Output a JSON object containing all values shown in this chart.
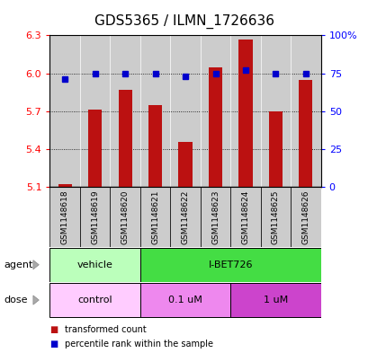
{
  "title": "GDS5365 / ILMN_1726636",
  "samples": [
    "GSM1148618",
    "GSM1148619",
    "GSM1148620",
    "GSM1148621",
    "GSM1148622",
    "GSM1148623",
    "GSM1148624",
    "GSM1148625",
    "GSM1148626"
  ],
  "red_values": [
    5.12,
    5.71,
    5.87,
    5.75,
    5.46,
    6.05,
    6.27,
    5.7,
    5.95
  ],
  "blue_values": [
    71,
    75,
    75,
    75,
    73,
    75,
    77,
    75,
    75
  ],
  "ylim_left": [
    5.1,
    6.3
  ],
  "ylim_right": [
    0,
    100
  ],
  "yticks_left": [
    5.1,
    5.4,
    5.7,
    6.0,
    6.3
  ],
  "yticks_right": [
    0,
    25,
    50,
    75,
    100
  ],
  "ytick_labels_right": [
    "0",
    "25",
    "50",
    "75",
    "100%"
  ],
  "bar_color": "#bb1111",
  "marker_color": "#0000cc",
  "bar_bottom": 5.1,
  "agent_groups": [
    {
      "label": "vehicle",
      "start": 0,
      "end": 3,
      "color": "#bbffbb"
    },
    {
      "label": "I-BET726",
      "start": 3,
      "end": 9,
      "color": "#44dd44"
    }
  ],
  "dose_groups": [
    {
      "label": "control",
      "start": 0,
      "end": 3,
      "color": "#ffccff"
    },
    {
      "label": "0.1 uM",
      "start": 3,
      "end": 6,
      "color": "#ee88ee"
    },
    {
      "label": "1 uM",
      "start": 6,
      "end": 9,
      "color": "#cc44cc"
    }
  ],
  "legend_red_label": "transformed count",
  "legend_blue_label": "percentile rank within the sample",
  "panel_bg": "#cccccc",
  "title_fontsize": 11,
  "tick_fontsize": 8,
  "sample_fontsize": 6.5
}
